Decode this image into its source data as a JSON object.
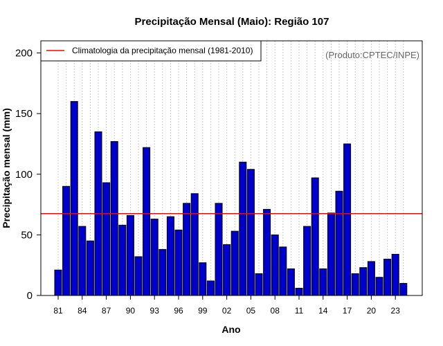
{
  "chart_data": {
    "type": "bar",
    "title": "Precipitação Mensal (Maio): Região 107",
    "xlabel": "Ano",
    "ylabel": "Precipitação mensal (mm)",
    "ylim": [
      0,
      210
    ],
    "yticks": [
      0,
      50,
      100,
      150,
      200
    ],
    "source": "(Produto:CPTEC/INPE)",
    "categories": [
      "1981",
      "1982",
      "1983",
      "1984",
      "1985",
      "1986",
      "1987",
      "1988",
      "1989",
      "1990",
      "1991",
      "1992",
      "1993",
      "1994",
      "1995",
      "1996",
      "1997",
      "1998",
      "1999",
      "2000",
      "2001",
      "2002",
      "2003",
      "2004",
      "2005",
      "2006",
      "2007",
      "2008",
      "2009",
      "2010",
      "2011",
      "2012",
      "2013",
      "2014",
      "2015",
      "2016",
      "2017",
      "2018",
      "2019",
      "2020",
      "2021",
      "2022",
      "2023",
      "2024"
    ],
    "xtick_labels": [
      {
        "index": 0,
        "label": "81"
      },
      {
        "index": 3,
        "label": "84"
      },
      {
        "index": 6,
        "label": "87"
      },
      {
        "index": 9,
        "label": "90"
      },
      {
        "index": 12,
        "label": "93"
      },
      {
        "index": 15,
        "label": "96"
      },
      {
        "index": 18,
        "label": "99"
      },
      {
        "index": 21,
        "label": "02"
      },
      {
        "index": 24,
        "label": "05"
      },
      {
        "index": 27,
        "label": "08"
      },
      {
        "index": 30,
        "label": "11"
      },
      {
        "index": 33,
        "label": "14"
      },
      {
        "index": 36,
        "label": "17"
      },
      {
        "index": 39,
        "label": "20"
      },
      {
        "index": 42,
        "label": "23"
      }
    ],
    "series": [
      {
        "name": "Precipitação mensal",
        "color": "#0000cc",
        "values": [
          21,
          90,
          160,
          57,
          45,
          135,
          93,
          127,
          58,
          66,
          32,
          122,
          63,
          38,
          65,
          54,
          76,
          84,
          27,
          12,
          76,
          42,
          53,
          110,
          104,
          18,
          71,
          50,
          40,
          22,
          6,
          57,
          97,
          22,
          68,
          86,
          125,
          18,
          23,
          28,
          15,
          30,
          34,
          10
        ]
      }
    ],
    "climatology": {
      "label": "Climatologia da precipitação mensal (1981-2010)",
      "value": 67.5,
      "color": "#ff0000"
    },
    "grid": "vertical-dotted",
    "legend_position": "top-left"
  }
}
